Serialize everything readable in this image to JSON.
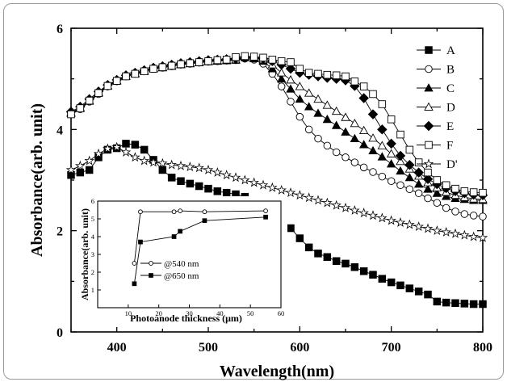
{
  "chart_data": [
    {
      "type": "scatter",
      "title": "",
      "xlabel": "Wavelength(nm)",
      "ylabel": "Absorbance(arb. unit)",
      "xlim": [
        350,
        800
      ],
      "ylim": [
        0,
        6
      ],
      "xticks": [
        400,
        500,
        600,
        700,
        800
      ],
      "yticks": [
        0,
        2,
        4,
        6
      ],
      "legend": "top-right",
      "series": [
        {
          "name": "A",
          "marker": "square-filled",
          "color": "#000000",
          "x": [
            350,
            360,
            370,
            380,
            390,
            400,
            410,
            420,
            430,
            440,
            450,
            460,
            470,
            480,
            490,
            500,
            510,
            520,
            530,
            540,
            550,
            560,
            570,
            580,
            590,
            600,
            610,
            620,
            630,
            640,
            650,
            660,
            670,
            680,
            690,
            700,
            710,
            720,
            730,
            740,
            750,
            760,
            770,
            780,
            790,
            800
          ],
          "y": [
            3.1,
            3.15,
            3.2,
            3.45,
            3.6,
            3.63,
            3.72,
            3.7,
            3.6,
            3.4,
            3.2,
            3.05,
            2.98,
            2.93,
            2.88,
            2.83,
            2.78,
            2.75,
            2.72,
            2.67,
            2.6,
            2.5,
            2.37,
            2.22,
            2.05,
            1.85,
            1.67,
            1.55,
            1.48,
            1.4,
            1.35,
            1.28,
            1.2,
            1.13,
            1.05,
            0.98,
            0.92,
            0.86,
            0.8,
            0.74,
            0.6,
            0.58,
            0.57,
            0.56,
            0.55,
            0.55
          ]
        },
        {
          "name": "B",
          "marker": "circle-open",
          "color": "#000000",
          "x": [
            350,
            360,
            370,
            380,
            390,
            400,
            410,
            420,
            430,
            440,
            450,
            460,
            470,
            480,
            490,
            500,
            510,
            520,
            530,
            540,
            550,
            560,
            570,
            580,
            590,
            600,
            610,
            620,
            630,
            640,
            650,
            660,
            670,
            680,
            690,
            700,
            710,
            720,
            730,
            740,
            750,
            760,
            770,
            780,
            790,
            800
          ],
          "y": [
            4.3,
            4.4,
            4.55,
            4.7,
            4.85,
            4.95,
            5.05,
            5.1,
            5.15,
            5.2,
            5.22,
            5.25,
            5.28,
            5.3,
            5.32,
            5.34,
            5.35,
            5.36,
            5.37,
            5.4,
            5.38,
            5.3,
            5.1,
            4.85,
            4.55,
            4.25,
            4.0,
            3.82,
            3.68,
            3.55,
            3.45,
            3.35,
            3.25,
            3.16,
            3.07,
            2.98,
            2.9,
            2.82,
            2.74,
            2.64,
            2.55,
            2.45,
            2.38,
            2.33,
            2.3,
            2.28
          ]
        },
        {
          "name": "C",
          "marker": "triangle-filled",
          "color": "#000000",
          "x": [
            350,
            360,
            370,
            380,
            390,
            400,
            410,
            420,
            430,
            440,
            450,
            460,
            470,
            480,
            490,
            500,
            510,
            520,
            530,
            540,
            550,
            560,
            570,
            580,
            590,
            600,
            610,
            620,
            630,
            640,
            650,
            660,
            670,
            680,
            690,
            700,
            710,
            720,
            730,
            740,
            750,
            760,
            770,
            780,
            790,
            800
          ],
          "y": [
            4.32,
            4.42,
            4.56,
            4.72,
            4.86,
            4.96,
            5.05,
            5.1,
            5.15,
            5.2,
            5.22,
            5.25,
            5.28,
            5.3,
            5.32,
            5.34,
            5.35,
            5.36,
            5.37,
            5.42,
            5.4,
            5.35,
            5.2,
            5.0,
            4.8,
            4.6,
            4.45,
            4.32,
            4.2,
            4.08,
            3.95,
            3.82,
            3.7,
            3.58,
            3.46,
            3.32,
            3.18,
            3.05,
            2.92,
            2.82,
            2.74,
            2.68,
            2.64,
            2.62,
            2.6,
            2.6
          ]
        },
        {
          "name": "D",
          "marker": "triangle-open",
          "color": "#000000",
          "x": [
            350,
            360,
            370,
            380,
            390,
            400,
            410,
            420,
            430,
            440,
            450,
            460,
            470,
            480,
            490,
            500,
            510,
            520,
            530,
            540,
            550,
            560,
            570,
            580,
            590,
            600,
            610,
            620,
            630,
            640,
            650,
            660,
            670,
            680,
            690,
            700,
            710,
            720,
            730,
            740,
            750,
            760,
            770,
            780,
            790,
            800
          ],
          "y": [
            4.33,
            4.43,
            4.57,
            4.73,
            4.87,
            4.97,
            5.06,
            5.11,
            5.16,
            5.21,
            5.23,
            5.26,
            5.29,
            5.31,
            5.33,
            5.35,
            5.36,
            5.37,
            5.38,
            5.43,
            5.42,
            5.38,
            5.28,
            5.12,
            4.98,
            4.85,
            4.72,
            4.6,
            4.48,
            4.36,
            4.24,
            4.12,
            3.98,
            3.83,
            3.68,
            3.52,
            3.37,
            3.22,
            3.08,
            2.95,
            2.85,
            2.76,
            2.7,
            2.66,
            2.63,
            2.62
          ]
        },
        {
          "name": "E",
          "marker": "diamond-filled",
          "color": "#000000",
          "x": [
            350,
            360,
            370,
            380,
            390,
            400,
            410,
            420,
            430,
            440,
            450,
            460,
            470,
            480,
            490,
            500,
            510,
            520,
            530,
            540,
            550,
            560,
            570,
            580,
            590,
            600,
            610,
            620,
            630,
            640,
            650,
            660,
            670,
            680,
            690,
            700,
            710,
            720,
            730,
            740,
            750,
            760,
            770,
            780,
            790,
            800
          ],
          "y": [
            4.35,
            4.45,
            4.6,
            4.75,
            4.88,
            4.98,
            5.07,
            5.12,
            5.17,
            5.22,
            5.25,
            5.28,
            5.31,
            5.33,
            5.35,
            5.37,
            5.38,
            5.39,
            5.4,
            5.42,
            5.42,
            5.4,
            5.35,
            5.28,
            5.2,
            5.12,
            5.08,
            5.05,
            5.02,
            5.0,
            4.97,
            4.86,
            4.62,
            4.3,
            4.0,
            3.72,
            3.48,
            3.3,
            3.15,
            3.02,
            2.92,
            2.84,
            2.78,
            2.74,
            2.71,
            2.7
          ]
        },
        {
          "name": "F",
          "marker": "square-open",
          "color": "#000000",
          "x": [
            350,
            360,
            370,
            380,
            390,
            400,
            410,
            420,
            430,
            440,
            450,
            460,
            470,
            480,
            490,
            500,
            510,
            520,
            530,
            540,
            550,
            560,
            570,
            580,
            590,
            600,
            610,
            620,
            630,
            640,
            650,
            660,
            670,
            680,
            690,
            700,
            710,
            720,
            730,
            740,
            750,
            760,
            770,
            780,
            790,
            800
          ],
          "y": [
            4.3,
            4.42,
            4.57,
            4.72,
            4.86,
            4.96,
            5.05,
            5.1,
            5.15,
            5.2,
            5.23,
            5.26,
            5.29,
            5.31,
            5.33,
            5.35,
            5.37,
            5.38,
            5.43,
            5.45,
            5.44,
            5.42,
            5.38,
            5.35,
            5.33,
            5.2,
            5.12,
            5.1,
            5.08,
            5.07,
            5.05,
            4.95,
            4.85,
            4.7,
            4.5,
            4.2,
            3.9,
            3.6,
            3.35,
            3.15,
            3.0,
            2.9,
            2.83,
            2.78,
            2.76,
            2.75
          ]
        },
        {
          "name": "D'",
          "marker": "star-open",
          "color": "#000000",
          "x": [
            350,
            360,
            370,
            380,
            390,
            400,
            410,
            420,
            430,
            440,
            450,
            460,
            470,
            480,
            490,
            500,
            510,
            520,
            530,
            540,
            550,
            560,
            570,
            580,
            590,
            600,
            610,
            620,
            630,
            640,
            650,
            660,
            670,
            680,
            690,
            700,
            710,
            720,
            730,
            740,
            750,
            760,
            770,
            780,
            790,
            800
          ],
          "y": [
            3.2,
            3.28,
            3.38,
            3.52,
            3.62,
            3.65,
            3.55,
            3.45,
            3.38,
            3.35,
            3.33,
            3.3,
            3.28,
            3.26,
            3.24,
            3.2,
            3.15,
            3.1,
            3.05,
            3.0,
            2.95,
            2.9,
            2.85,
            2.8,
            2.75,
            2.7,
            2.65,
            2.6,
            2.55,
            2.5,
            2.45,
            2.4,
            2.35,
            2.3,
            2.25,
            2.2,
            2.16,
            2.12,
            2.08,
            2.04,
            2.0,
            1.97,
            1.94,
            1.91,
            1.88,
            1.86
          ]
        }
      ]
    },
    {
      "type": "line",
      "title": "",
      "xlabel": "Photoanode thickness (μm)",
      "ylabel": "Absorbance(arb. unit)",
      "xlim": [
        0,
        60
      ],
      "ylim": [
        0,
        6
      ],
      "xticks": [
        10,
        20,
        30,
        40,
        50,
        60
      ],
      "yticks": [
        1,
        2,
        3,
        4,
        5,
        6
      ],
      "legend": "center-right",
      "series": [
        {
          "name": "@540 nm",
          "marker": "circle-open",
          "x": [
            12,
            14,
            25,
            27,
            35,
            55
          ],
          "y": [
            2.5,
            5.4,
            5.4,
            5.45,
            5.4,
            5.45
          ]
        },
        {
          "name": "@650 nm",
          "marker": "square-filled",
          "x": [
            12,
            14,
            25,
            27,
            35,
            55
          ],
          "y": [
            1.35,
            3.7,
            4.0,
            4.3,
            4.9,
            5.1
          ]
        }
      ]
    }
  ]
}
